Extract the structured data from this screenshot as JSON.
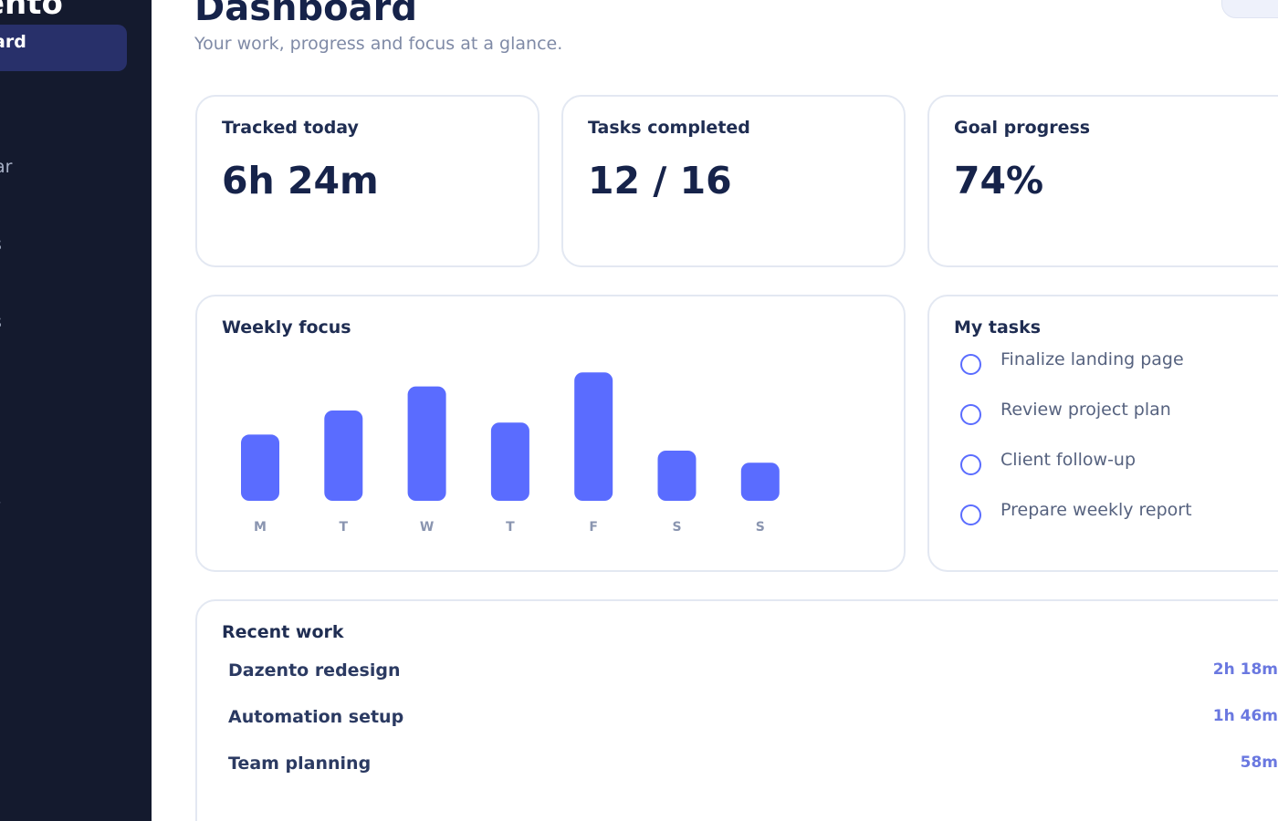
{
  "sidebar": {
    "brand": "ento",
    "active_item": "oard",
    "items": [
      "ar",
      "s",
      "s",
      "/",
      "."
    ]
  },
  "header": {
    "title": "Dashboard",
    "subtitle": "Your work, progress and focus at a glance."
  },
  "stats": [
    {
      "label": "Tracked today",
      "value": "6h 24m"
    },
    {
      "label": "Tasks completed",
      "value": "12 / 16"
    },
    {
      "label": "Goal progress",
      "value": "74%"
    }
  ],
  "weekly_focus": {
    "title": "Weekly focus"
  },
  "chart_data": {
    "type": "bar",
    "categories": [
      "M",
      "T",
      "W",
      "T",
      "F",
      "S",
      "S"
    ],
    "values": [
      3.3,
      4.5,
      5.7,
      3.9,
      6.4,
      2.5,
      1.9
    ],
    "title": "Weekly focus",
    "xlabel": "",
    "ylabel": "",
    "ylim": [
      0,
      7
    ],
    "grid": false,
    "bar_color": "#5a6cff"
  },
  "my_tasks": {
    "title": "My tasks",
    "items": [
      {
        "label": "Finalize landing page"
      },
      {
        "label": "Review project plan"
      },
      {
        "label": "Client follow-up"
      },
      {
        "label": "Prepare weekly report"
      }
    ]
  },
  "recent_work": {
    "title": "Recent work",
    "rows": [
      {
        "name": "Dazento redesign",
        "time": "2h 18m"
      },
      {
        "name": "Automation setup",
        "time": "1h 46m"
      },
      {
        "name": "Team planning",
        "time": "58m"
      }
    ]
  },
  "colors": {
    "sidebar_bg": "#141a2e",
    "active_nav_bg": "#28306a",
    "accent": "#5a6cff",
    "time_text": "#6a78e0"
  }
}
